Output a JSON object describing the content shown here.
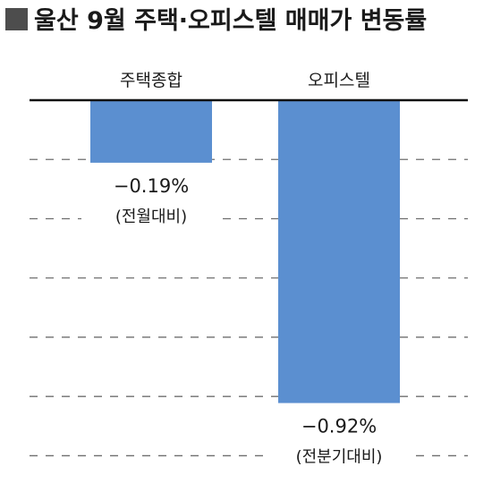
{
  "title": "울산 9월 주택·오피스텔 매매가 변동률",
  "colors": {
    "bar": "#5b8fd0",
    "grid": "#6e6e6e",
    "baseline": "#111111",
    "title_marker": "#4d4d4d"
  },
  "chart_data": {
    "type": "bar",
    "categories": [
      "주택종합",
      "오피스텔"
    ],
    "values": [
      -0.19,
      -0.92
    ],
    "value_labels": [
      "−0.19%",
      "−0.92%"
    ],
    "value_notes": [
      "(전월대비)",
      "(전분기대비)"
    ],
    "ylim": [
      -1.1,
      0
    ],
    "grid": true,
    "grid_style": "dashed",
    "legend": "none"
  }
}
